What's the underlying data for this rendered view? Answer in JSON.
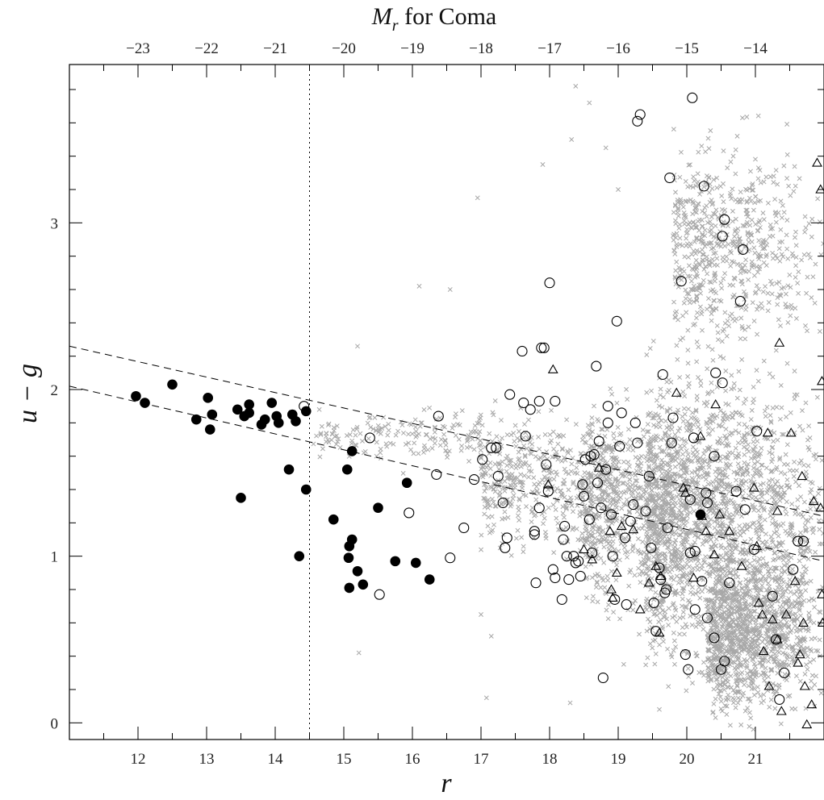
{
  "chart_data": {
    "type": "scatter",
    "title": "",
    "top_axis_label_prefix": "M",
    "top_axis_label_sub": "r",
    "top_axis_label_suffix": " for Coma",
    "xlabel": "r",
    "ylabel": "u − g",
    "xlim": [
      11.0,
      22.0
    ],
    "ylim": [
      -0.1,
      3.95
    ],
    "x_ticks": [
      12,
      13,
      14,
      15,
      16,
      17,
      18,
      19,
      20,
      21
    ],
    "x_tick_labels": [
      "12",
      "13",
      "14",
      "15",
      "16",
      "17",
      "18",
      "19",
      "20",
      "21"
    ],
    "y_ticks": [
      0,
      1,
      2,
      3
    ],
    "y_tick_labels": [
      "0",
      "1",
      "2",
      "3"
    ],
    "top_ticks_r": [
      12.0,
      13.0,
      14.0,
      15.0,
      16.0,
      17.0,
      18.0,
      19.0,
      20.0,
      21.0
    ],
    "top_tick_labels": [
      "−23",
      "−22",
      "−21",
      "−20",
      "−19",
      "−18",
      "−17",
      "−16",
      "−15",
      "−14"
    ],
    "vertical_line_x": 14.5,
    "dashed_lines": [
      {
        "x": [
          11.0,
          22.0
        ],
        "y": [
          2.26,
          1.24
        ]
      },
      {
        "x": [
          11.0,
          22.0
        ],
        "y": [
          2.02,
          0.97
        ]
      }
    ],
    "series": [
      {
        "marker": "filled-circle",
        "color": "#000000",
        "points": [
          [
            11.97,
            1.96
          ],
          [
            12.1,
            1.92
          ],
          [
            12.5,
            2.03
          ],
          [
            12.85,
            1.82
          ],
          [
            13.02,
            1.95
          ],
          [
            13.05,
            1.76
          ],
          [
            13.08,
            1.85
          ],
          [
            13.45,
            1.88
          ],
          [
            13.55,
            1.84
          ],
          [
            13.62,
            1.91
          ],
          [
            13.62,
            1.86
          ],
          [
            13.8,
            1.79
          ],
          [
            13.85,
            1.82
          ],
          [
            13.95,
            1.92
          ],
          [
            14.02,
            1.84
          ],
          [
            14.05,
            1.8
          ],
          [
            14.25,
            1.85
          ],
          [
            14.3,
            1.81
          ],
          [
            14.45,
            1.87
          ],
          [
            13.5,
            1.35
          ],
          [
            14.2,
            1.52
          ],
          [
            14.45,
            1.4
          ],
          [
            14.35,
            1.0
          ],
          [
            14.85,
            1.22
          ],
          [
            15.05,
            1.52
          ],
          [
            15.12,
            1.63
          ],
          [
            15.08,
            1.06
          ],
          [
            15.12,
            1.1
          ],
          [
            15.07,
            0.99
          ],
          [
            15.2,
            0.91
          ],
          [
            15.08,
            0.81
          ],
          [
            15.28,
            0.83
          ],
          [
            15.5,
            1.29
          ],
          [
            15.75,
            0.97
          ],
          [
            15.92,
            1.44
          ],
          [
            16.05,
            0.96
          ],
          [
            16.25,
            0.86
          ],
          [
            20.2,
            1.25
          ]
        ]
      },
      {
        "marker": "open-circle",
        "color": "#000000",
        "points": [
          [
            14.42,
            1.9
          ],
          [
            15.38,
            1.71
          ],
          [
            15.52,
            0.77
          ],
          [
            15.95,
            1.26
          ],
          [
            16.38,
            1.84
          ],
          [
            16.35,
            1.49
          ],
          [
            16.55,
            0.99
          ],
          [
            16.75,
            1.17
          ],
          [
            16.9,
            1.46
          ],
          [
            17.02,
            1.58
          ],
          [
            17.15,
            1.65
          ],
          [
            17.22,
            1.65
          ],
          [
            17.25,
            1.48
          ],
          [
            17.32,
            1.32
          ],
          [
            17.38,
            1.11
          ],
          [
            17.35,
            1.05
          ],
          [
            17.42,
            1.97
          ],
          [
            17.6,
            2.23
          ],
          [
            17.62,
            1.92
          ],
          [
            17.65,
            1.72
          ],
          [
            17.72,
            1.88
          ],
          [
            17.78,
            1.15
          ],
          [
            17.78,
            1.13
          ],
          [
            17.8,
            0.84
          ],
          [
            17.85,
            1.29
          ],
          [
            17.85,
            1.93
          ],
          [
            17.88,
            2.25
          ],
          [
            17.92,
            2.25
          ],
          [
            17.95,
            1.55
          ],
          [
            17.98,
            1.39
          ],
          [
            18.0,
            2.64
          ],
          [
            18.05,
            0.92
          ],
          [
            18.08,
            1.93
          ],
          [
            18.08,
            0.87
          ],
          [
            18.18,
            0.74
          ],
          [
            18.2,
            1.1
          ],
          [
            18.22,
            1.18
          ],
          [
            18.25,
            1.0
          ],
          [
            18.28,
            0.86
          ],
          [
            18.35,
            1.0
          ],
          [
            18.38,
            0.96
          ],
          [
            18.42,
            0.97
          ],
          [
            18.45,
            0.88
          ],
          [
            18.48,
            1.43
          ],
          [
            18.52,
            1.58
          ],
          [
            18.5,
            1.36
          ],
          [
            18.58,
            1.22
          ],
          [
            18.6,
            1.6
          ],
          [
            18.62,
            1.02
          ],
          [
            18.65,
            1.61
          ],
          [
            18.68,
            2.14
          ],
          [
            18.7,
            1.44
          ],
          [
            18.72,
            1.69
          ],
          [
            18.75,
            1.29
          ],
          [
            18.78,
            0.27
          ],
          [
            18.82,
            1.52
          ],
          [
            18.85,
            1.9
          ],
          [
            18.85,
            1.8
          ],
          [
            18.9,
            1.25
          ],
          [
            18.92,
            1.0
          ],
          [
            18.95,
            0.74
          ],
          [
            18.98,
            2.41
          ],
          [
            19.02,
            1.66
          ],
          [
            19.05,
            1.86
          ],
          [
            19.1,
            1.11
          ],
          [
            19.12,
            0.71
          ],
          [
            19.18,
            1.21
          ],
          [
            19.22,
            1.31
          ],
          [
            19.25,
            1.8
          ],
          [
            19.28,
            1.68
          ],
          [
            19.28,
            3.61
          ],
          [
            19.32,
            3.65
          ],
          [
            19.4,
            1.27
          ],
          [
            19.45,
            1.48
          ],
          [
            19.48,
            1.05
          ],
          [
            19.52,
            0.72
          ],
          [
            19.55,
            0.55
          ],
          [
            19.6,
            0.93
          ],
          [
            19.62,
            0.86
          ],
          [
            19.65,
            2.09
          ],
          [
            19.68,
            0.78
          ],
          [
            19.7,
            0.8
          ],
          [
            19.72,
            1.17
          ],
          [
            19.75,
            3.27
          ],
          [
            19.78,
            1.68
          ],
          [
            19.8,
            1.83
          ],
          [
            19.92,
            2.65
          ],
          [
            19.98,
            0.41
          ],
          [
            20.02,
            0.32
          ],
          [
            20.05,
            1.34
          ],
          [
            20.05,
            1.02
          ],
          [
            20.08,
            3.75
          ],
          [
            20.1,
            1.71
          ],
          [
            20.12,
            0.68
          ],
          [
            20.12,
            1.03
          ],
          [
            20.22,
            0.85
          ],
          [
            20.25,
            3.22
          ],
          [
            20.28,
            1.38
          ],
          [
            20.3,
            0.63
          ],
          [
            20.3,
            1.32
          ],
          [
            20.4,
            1.6
          ],
          [
            20.4,
            0.51
          ],
          [
            20.42,
            2.1
          ],
          [
            20.5,
            0.32
          ],
          [
            20.52,
            2.04
          ],
          [
            20.55,
            0.37
          ],
          [
            20.55,
            3.02
          ],
          [
            20.52,
            2.92
          ],
          [
            20.62,
            0.84
          ],
          [
            20.72,
            1.39
          ],
          [
            20.78,
            2.53
          ],
          [
            20.82,
            2.84
          ],
          [
            20.85,
            1.28
          ],
          [
            20.98,
            1.04
          ],
          [
            21.02,
            1.75
          ],
          [
            21.25,
            0.76
          ],
          [
            21.3,
            0.5
          ],
          [
            21.35,
            0.14
          ],
          [
            21.42,
            0.3
          ],
          [
            21.55,
            0.92
          ],
          [
            21.62,
            1.09
          ],
          [
            21.7,
            1.09
          ]
        ]
      },
      {
        "marker": "open-triangle",
        "color": "#000000",
        "points": [
          [
            17.98,
            1.43
          ],
          [
            18.05,
            2.12
          ],
          [
            18.5,
            1.04
          ],
          [
            18.62,
            0.98
          ],
          [
            18.72,
            1.53
          ],
          [
            18.88,
            1.15
          ],
          [
            18.9,
            0.8
          ],
          [
            18.92,
            0.75
          ],
          [
            18.98,
            0.9
          ],
          [
            19.05,
            1.18
          ],
          [
            19.22,
            1.16
          ],
          [
            19.32,
            0.68
          ],
          [
            19.45,
            0.84
          ],
          [
            19.55,
            0.94
          ],
          [
            19.6,
            0.54
          ],
          [
            19.62,
            0.88
          ],
          [
            19.85,
            1.98
          ],
          [
            19.95,
            1.41
          ],
          [
            19.98,
            1.38
          ],
          [
            20.1,
            0.87
          ],
          [
            20.2,
            1.72
          ],
          [
            20.22,
            1.24
          ],
          [
            20.28,
            1.15
          ],
          [
            20.4,
            1.01
          ],
          [
            20.42,
            1.91
          ],
          [
            20.48,
            1.25
          ],
          [
            20.62,
            1.15
          ],
          [
            20.8,
            0.94
          ],
          [
            20.98,
            1.41
          ],
          [
            21.02,
            1.06
          ],
          [
            21.05,
            0.72
          ],
          [
            21.1,
            0.65
          ],
          [
            21.12,
            0.43
          ],
          [
            21.18,
            1.74
          ],
          [
            21.25,
            0.62
          ],
          [
            21.32,
            0.5
          ],
          [
            21.32,
            1.27
          ],
          [
            21.35,
            2.28
          ],
          [
            21.45,
            0.65
          ],
          [
            21.52,
            1.74
          ],
          [
            21.58,
            0.85
          ],
          [
            21.62,
            0.36
          ],
          [
            21.65,
            0.41
          ],
          [
            21.68,
            1.48
          ],
          [
            21.7,
            0.6
          ],
          [
            21.72,
            0.22
          ],
          [
            21.75,
            -0.01
          ],
          [
            21.82,
            0.11
          ],
          [
            21.85,
            1.33
          ],
          [
            21.9,
            3.36
          ],
          [
            21.95,
            3.2
          ],
          [
            21.95,
            1.29
          ],
          [
            21.97,
            0.77
          ],
          [
            21.97,
            2.05
          ],
          [
            21.98,
            0.6
          ],
          [
            21.38,
            0.07
          ],
          [
            21.2,
            0.22
          ]
        ]
      },
      {
        "marker": "cross",
        "color": "#a8a8a8",
        "note_on_density": "dense background of several thousand faint grey crosses; sampled",
        "points": [
          [
            15.2,
            2.26
          ],
          [
            15.22,
            0.42
          ],
          [
            16.1,
            2.62
          ],
          [
            16.55,
            2.6
          ],
          [
            16.95,
            3.15
          ],
          [
            17.0,
            0.65
          ],
          [
            17.08,
            0.15
          ],
          [
            17.15,
            0.52
          ],
          [
            17.9,
            3.35
          ],
          [
            18.32,
            3.5
          ],
          [
            18.38,
            3.82
          ],
          [
            18.3,
            0.12
          ],
          [
            18.58,
            3.72
          ],
          [
            18.82,
            3.45
          ],
          [
            19.0,
            3.2
          ]
        ],
        "density_regions": [
          {
            "x_range": [
              14.55,
              17.0
            ],
            "y_center": 1.72,
            "y_spread": 0.22,
            "count": 170,
            "x_bias": 1.25
          },
          {
            "x_range": [
              17.0,
              19.0
            ],
            "y_center": 1.45,
            "y_spread": 0.55,
            "count": 500,
            "x_bias": 1.0
          },
          {
            "x_range": [
              18.5,
              20.0
            ],
            "y_center": 1.3,
            "y_spread": 0.9,
            "count": 700,
            "x_bias": 1.0
          },
          {
            "x_range": [
              19.4,
              22.0
            ],
            "y_center": 1.25,
            "y_spread": 1.2,
            "count": 1700,
            "x_bias": 0.65
          },
          {
            "x_range": [
              20.3,
              22.0
            ],
            "y_center": 0.55,
            "y_spread": 0.65,
            "count": 1100,
            "x_bias": 0.55
          },
          {
            "x_range": [
              19.8,
              22.0
            ],
            "y_center": 2.85,
            "y_spread": 0.9,
            "count": 650,
            "x_bias": 0.55
          }
        ]
      }
    ]
  }
}
